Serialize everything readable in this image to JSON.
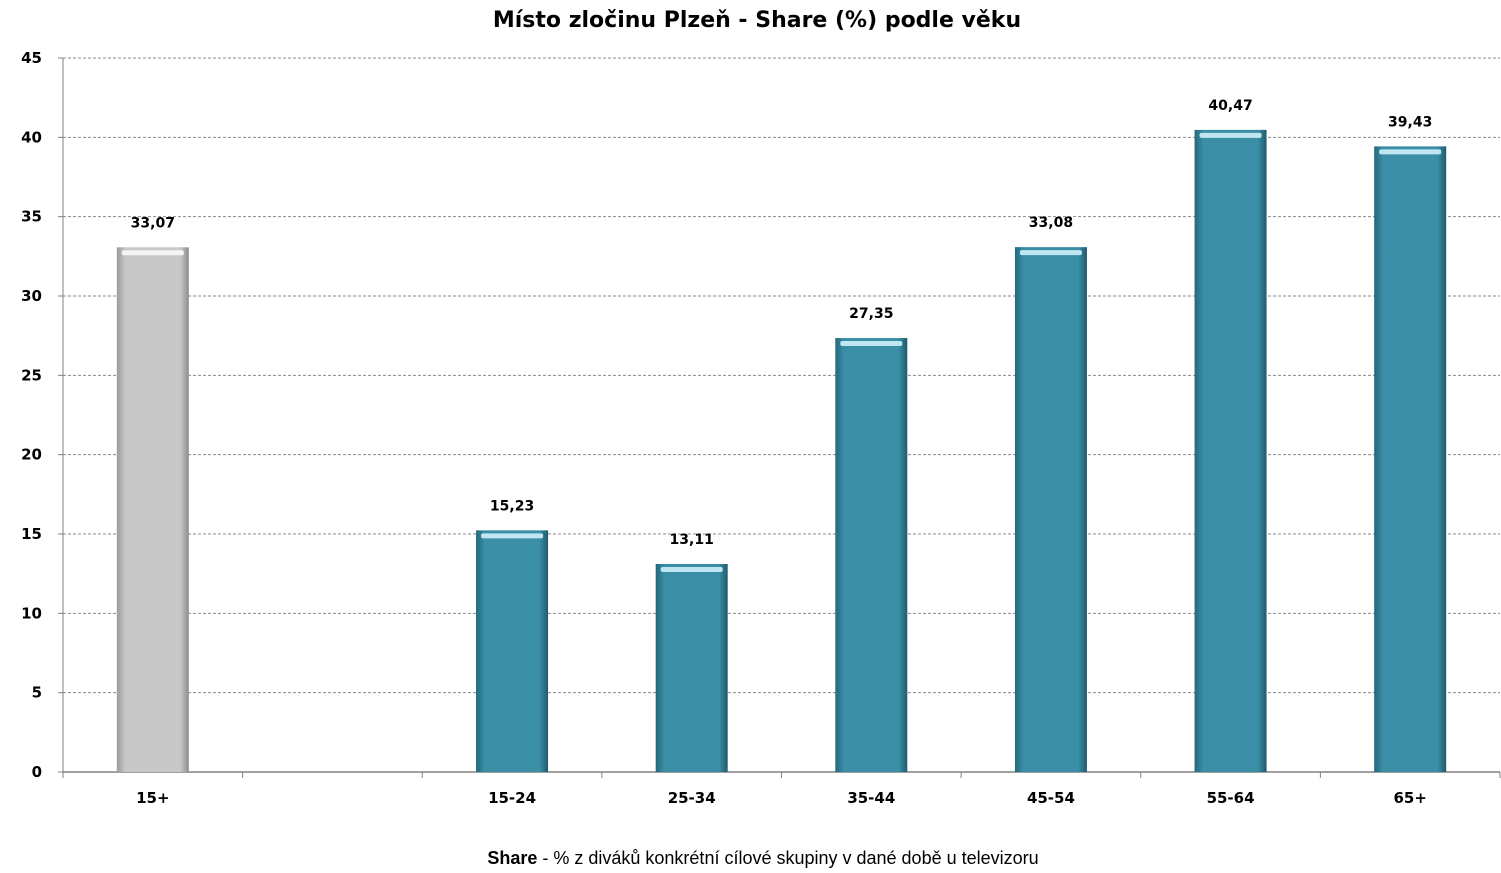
{
  "chart_data": {
    "type": "bar",
    "title": "Místo zločinu Plzeň - Share (%) podle věku",
    "categories": [
      "15+",
      "",
      "15-24",
      "25-34",
      "35-44",
      "45-54",
      "55-64",
      "65+"
    ],
    "values": [
      33.07,
      null,
      15.23,
      13.11,
      27.35,
      33.08,
      40.47,
      39.43
    ],
    "value_labels": [
      "33,07",
      "",
      "15,23",
      "13,11",
      "27,35",
      "33,08",
      "40,47",
      "39,43"
    ],
    "bar_colors": [
      "#c4c4c4",
      null,
      "#3a8ea6",
      "#3a8ea6",
      "#3a8ea6",
      "#3a8ea6",
      "#3a8ea6",
      "#3a8ea6"
    ],
    "ylim": [
      0,
      45
    ],
    "yticks": [
      0,
      5,
      10,
      15,
      20,
      25,
      30,
      35,
      40,
      45
    ],
    "grid": true,
    "xlabel": "",
    "ylabel": ""
  },
  "footnote": {
    "term": "Share",
    "text": " - % z diváků konkrétní cílové skupiny v dané době u televizoru"
  }
}
